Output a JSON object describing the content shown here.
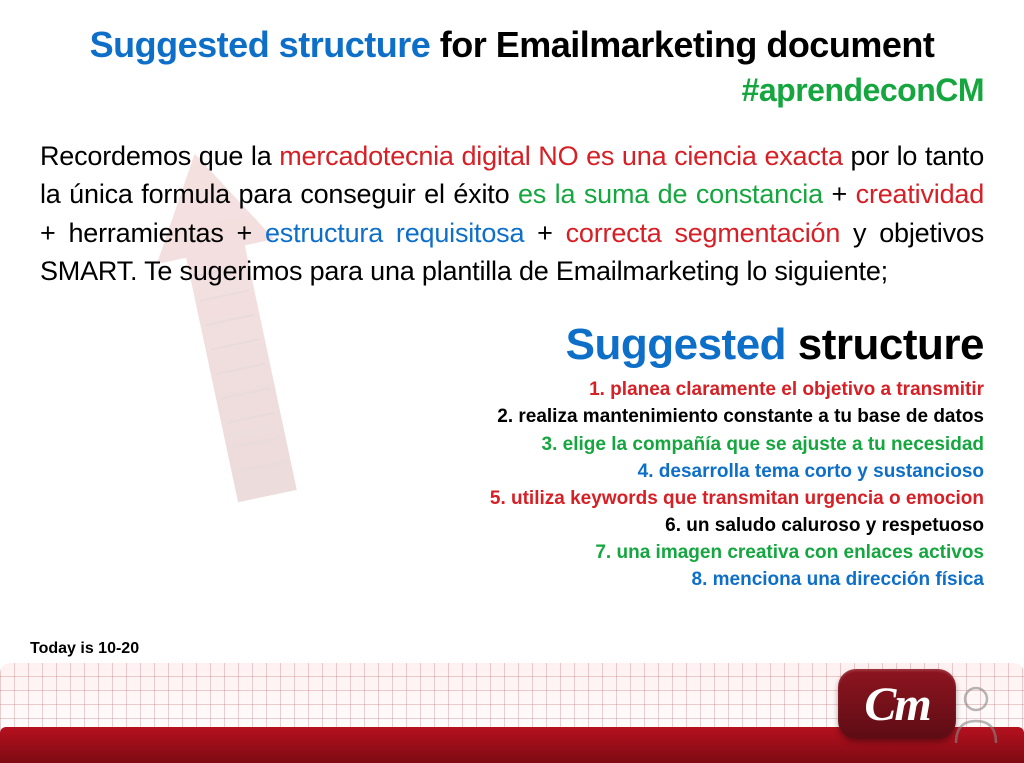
{
  "colors": {
    "blue": "#0e6fc9",
    "green": "#16a63f",
    "red": "#d62026",
    "black": "#000000"
  },
  "title": {
    "part1": "Suggested structure",
    "part2": " for Emailmarketing document"
  },
  "hashtag": "#aprendeconCM",
  "paragraph": {
    "segments": [
      {
        "text": "Recordemos que la ",
        "color": "black"
      },
      {
        "text": "mercadotecnia digital NO es una ciencia exacta",
        "color": "red"
      },
      {
        "text": " por lo tanto la única formula para conseguir el éxito ",
        "color": "black"
      },
      {
        "text": "es la suma de constancia",
        "color": "green"
      },
      {
        "text": " + ",
        "color": "black"
      },
      {
        "text": "creatividad",
        "color": "red"
      },
      {
        "text": " + herramientas + ",
        "color": "black"
      },
      {
        "text": "estructura requisitosa",
        "color": "blue"
      },
      {
        "text": " + ",
        "color": "black"
      },
      {
        "text": "correcta segmentación",
        "color": "red"
      },
      {
        "text": " y objetivos SMART. Te sugerimos para una plantilla de Emailmarketing lo siguiente;",
        "color": "black"
      }
    ]
  },
  "subhead": {
    "part1": "Suggested",
    "part2": " structure"
  },
  "list": [
    {
      "n": "1.",
      "text": "planea claramente el objetivo a transmitir",
      "color": "red"
    },
    {
      "n": "2.",
      "text": "realiza mantenimiento constante a tu base de datos",
      "color": "black"
    },
    {
      "n": "3.",
      "text": "elige la compañía que se ajuste a tu necesidad",
      "color": "green"
    },
    {
      "n": "4.",
      "text": "desarrolla tema corto y sustancioso",
      "color": "blue"
    },
    {
      "n": "5.",
      "text": "utiliza keywords  que transmitan urgencia o emocion",
      "color": "red"
    },
    {
      "n": "6.",
      "text": "un saludo caluroso y respetuoso",
      "color": "black"
    },
    {
      "n": "7.",
      "text": "una imagen creativa con enlaces activos",
      "color": "green"
    },
    {
      "n": "8.",
      "text": "menciona una dirección física",
      "color": "blue"
    }
  ],
  "today": "Today is 10-20",
  "logo_text": "Cm"
}
